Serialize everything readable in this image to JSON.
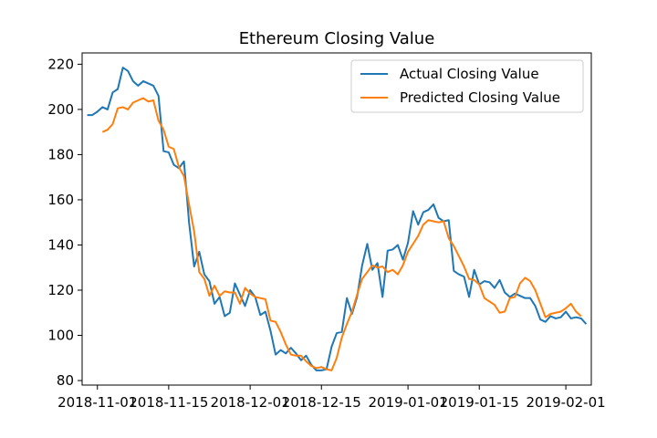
{
  "chart_data": {
    "type": "line",
    "title": "Ethereum Closing Value",
    "xlabel": "",
    "ylabel": "",
    "x_tick_labels": [
      "2018-11-01",
      "2018-11-15",
      "2018-12-01",
      "2018-12-15",
      "2019-01-01",
      "2019-01-15",
      "2019-02-01"
    ],
    "x_tick_dates": [
      "2018-11-01",
      "2018-11-15",
      "2018-12-01",
      "2018-12-15",
      "2019-01-01",
      "2019-01-15",
      "2019-02-01"
    ],
    "y_ticks": [
      80,
      100,
      120,
      140,
      160,
      180,
      200,
      220
    ],
    "xlim": [
      "2018-10-29",
      "2019-02-06"
    ],
    "ylim": [
      78,
      225
    ],
    "grid": false,
    "legend_position": "top-right",
    "series": [
      {
        "name": "Actual Closing Value",
        "color": "#1f77b4",
        "points": [
          [
            "2018-10-30",
            197.5
          ],
          [
            "2018-10-31",
            197.5
          ],
          [
            "2018-11-01",
            199
          ],
          [
            "2018-11-02",
            201
          ],
          [
            "2018-11-03",
            200
          ],
          [
            "2018-11-04",
            207.5
          ],
          [
            "2018-11-05",
            209
          ],
          [
            "2018-11-06",
            218.5
          ],
          [
            "2018-11-07",
            217
          ],
          [
            "2018-11-08",
            212.5
          ],
          [
            "2018-11-09",
            210.5
          ],
          [
            "2018-11-10",
            212.5
          ],
          [
            "2018-11-11",
            211.5
          ],
          [
            "2018-11-12",
            210.5
          ],
          [
            "2018-11-13",
            206
          ],
          [
            "2018-11-14",
            181.5
          ],
          [
            "2018-11-15",
            181
          ],
          [
            "2018-11-16",
            175.5
          ],
          [
            "2018-11-17",
            174
          ],
          [
            "2018-11-18",
            177
          ],
          [
            "2018-11-19",
            150
          ],
          [
            "2018-11-20",
            130.5
          ],
          [
            "2018-11-21",
            137
          ],
          [
            "2018-11-22",
            127
          ],
          [
            "2018-11-23",
            124
          ],
          [
            "2018-11-24",
            114
          ],
          [
            "2018-11-25",
            117
          ],
          [
            "2018-11-26",
            108.5
          ],
          [
            "2018-11-27",
            110
          ],
          [
            "2018-11-28",
            123
          ],
          [
            "2018-11-29",
            118
          ],
          [
            "2018-11-30",
            113
          ],
          [
            "2018-12-01",
            120
          ],
          [
            "2018-12-02",
            117
          ],
          [
            "2018-12-03",
            109
          ],
          [
            "2018-12-04",
            110.5
          ],
          [
            "2018-12-05",
            102
          ],
          [
            "2018-12-06",
            91.5
          ],
          [
            "2018-12-07",
            93.5
          ],
          [
            "2018-12-08",
            92
          ],
          [
            "2018-12-09",
            94.5
          ],
          [
            "2018-12-10",
            92
          ],
          [
            "2018-12-11",
            89
          ],
          [
            "2018-12-12",
            91
          ],
          [
            "2018-12-13",
            87
          ],
          [
            "2018-12-14",
            84.5
          ],
          [
            "2018-12-15",
            84.5
          ],
          [
            "2018-12-16",
            85
          ],
          [
            "2018-12-17",
            95
          ],
          [
            "2018-12-18",
            101
          ],
          [
            "2018-12-19",
            101.5
          ],
          [
            "2018-12-20",
            116.5
          ],
          [
            "2018-12-21",
            109.5
          ],
          [
            "2018-12-22",
            117
          ],
          [
            "2018-12-23",
            131
          ],
          [
            "2018-12-24",
            140.5
          ],
          [
            "2018-12-25",
            129
          ],
          [
            "2018-12-26",
            132
          ],
          [
            "2018-12-27",
            117
          ],
          [
            "2018-12-28",
            137.5
          ],
          [
            "2018-12-29",
            138
          ],
          [
            "2018-12-30",
            140
          ],
          [
            "2018-12-31",
            133.5
          ],
          [
            "2019-01-01",
            141
          ],
          [
            "2019-01-02",
            155
          ],
          [
            "2019-01-03",
            149
          ],
          [
            "2019-01-04",
            154.5
          ],
          [
            "2019-01-05",
            155.5
          ],
          [
            "2019-01-06",
            158
          ],
          [
            "2019-01-07",
            152
          ],
          [
            "2019-01-08",
            150.5
          ],
          [
            "2019-01-09",
            151
          ],
          [
            "2019-01-10",
            128.5
          ],
          [
            "2019-01-11",
            127
          ],
          [
            "2019-01-12",
            126
          ],
          [
            "2019-01-13",
            117
          ],
          [
            "2019-01-14",
            129
          ],
          [
            "2019-01-15",
            122.5
          ],
          [
            "2019-01-16",
            124
          ],
          [
            "2019-01-17",
            123.5
          ],
          [
            "2019-01-18",
            121
          ],
          [
            "2019-01-19",
            124.5
          ],
          [
            "2019-01-20",
            119
          ],
          [
            "2019-01-21",
            117
          ],
          [
            "2019-01-22",
            118.5
          ],
          [
            "2019-01-23",
            117.5
          ],
          [
            "2019-01-24",
            116.5
          ],
          [
            "2019-01-25",
            116.5
          ],
          [
            "2019-01-26",
            113
          ],
          [
            "2019-01-27",
            107
          ],
          [
            "2019-01-28",
            106
          ],
          [
            "2019-01-29",
            108.5
          ],
          [
            "2019-01-30",
            107.5
          ],
          [
            "2019-01-31",
            108
          ],
          [
            "2019-02-01",
            110.5
          ],
          [
            "2019-02-02",
            107.5
          ],
          [
            "2019-02-03",
            108
          ],
          [
            "2019-02-04",
            107.5
          ],
          [
            "2019-02-05",
            105
          ]
        ]
      },
      {
        "name": "Predicted Closing Value",
        "color": "#ff7f0e",
        "points": [
          [
            "2018-11-02",
            190
          ],
          [
            "2018-11-03",
            191
          ],
          [
            "2018-11-04",
            193.5
          ],
          [
            "2018-11-05",
            200.5
          ],
          [
            "2018-11-06",
            201
          ],
          [
            "2018-11-07",
            200
          ],
          [
            "2018-11-08",
            203
          ],
          [
            "2018-11-09",
            204
          ],
          [
            "2018-11-10",
            205
          ],
          [
            "2018-11-11",
            203.5
          ],
          [
            "2018-11-12",
            204
          ],
          [
            "2018-11-13",
            195
          ],
          [
            "2018-11-14",
            191
          ],
          [
            "2018-11-15",
            183.5
          ],
          [
            "2018-11-16",
            182.5
          ],
          [
            "2018-11-17",
            174.5
          ],
          [
            "2018-11-18",
            170.5
          ],
          [
            "2018-11-19",
            158
          ],
          [
            "2018-11-20",
            146
          ],
          [
            "2018-11-21",
            128
          ],
          [
            "2018-11-22",
            125
          ],
          [
            "2018-11-23",
            117.5
          ],
          [
            "2018-11-24",
            122
          ],
          [
            "2018-11-25",
            117.5
          ],
          [
            "2018-11-26",
            119.5
          ],
          [
            "2018-11-27",
            119
          ],
          [
            "2018-11-28",
            119
          ],
          [
            "2018-11-29",
            114
          ],
          [
            "2018-11-30",
            121
          ],
          [
            "2018-12-01",
            118.5
          ],
          [
            "2018-12-02",
            117
          ],
          [
            "2018-12-03",
            116.5
          ],
          [
            "2018-12-04",
            116
          ],
          [
            "2018-12-05",
            106.5
          ],
          [
            "2018-12-06",
            106
          ],
          [
            "2018-12-07",
            101.5
          ],
          [
            "2018-12-08",
            96
          ],
          [
            "2018-12-09",
            91.5
          ],
          [
            "2018-12-10",
            91
          ],
          [
            "2018-12-11",
            91
          ],
          [
            "2018-12-12",
            88.5
          ],
          [
            "2018-12-13",
            86.5
          ],
          [
            "2018-12-14",
            85.5
          ],
          [
            "2018-12-15",
            86
          ],
          [
            "2018-12-16",
            85
          ],
          [
            "2018-12-17",
            84.5
          ],
          [
            "2018-12-18",
            90
          ],
          [
            "2018-12-19",
            99
          ],
          [
            "2018-12-20",
            105
          ],
          [
            "2018-12-21",
            110.5
          ],
          [
            "2018-12-22",
            118
          ],
          [
            "2018-12-23",
            125
          ],
          [
            "2018-12-24",
            128
          ],
          [
            "2018-12-25",
            131
          ],
          [
            "2018-12-26",
            130
          ],
          [
            "2018-12-27",
            130.5
          ],
          [
            "2018-12-28",
            128
          ],
          [
            "2018-12-29",
            129
          ],
          [
            "2018-12-30",
            127
          ],
          [
            "2018-12-31",
            131
          ],
          [
            "2019-01-01",
            137
          ],
          [
            "2019-01-02",
            140.5
          ],
          [
            "2019-01-03",
            144
          ],
          [
            "2019-01-04",
            149
          ],
          [
            "2019-01-05",
            151
          ],
          [
            "2019-01-06",
            150.5
          ],
          [
            "2019-01-07",
            150
          ],
          [
            "2019-01-08",
            150.5
          ],
          [
            "2019-01-09",
            143
          ],
          [
            "2019-01-10",
            139.5
          ],
          [
            "2019-01-11",
            135
          ],
          [
            "2019-01-12",
            130.5
          ],
          [
            "2019-01-13",
            125
          ],
          [
            "2019-01-14",
            124.5
          ],
          [
            "2019-01-15",
            122.5
          ],
          [
            "2019-01-16",
            116.5
          ],
          [
            "2019-01-17",
            115
          ],
          [
            "2019-01-18",
            113.5
          ],
          [
            "2019-01-19",
            110
          ],
          [
            "2019-01-20",
            110.5
          ],
          [
            "2019-01-21",
            116.5
          ],
          [
            "2019-01-22",
            117
          ],
          [
            "2019-01-23",
            123
          ],
          [
            "2019-01-24",
            125.5
          ],
          [
            "2019-01-25",
            124
          ],
          [
            "2019-01-26",
            120
          ],
          [
            "2019-01-27",
            114
          ],
          [
            "2019-01-28",
            108
          ],
          [
            "2019-01-29",
            109.5
          ],
          [
            "2019-01-30",
            110
          ],
          [
            "2019-01-31",
            110.5
          ],
          [
            "2019-02-01",
            112
          ],
          [
            "2019-02-02",
            114
          ],
          [
            "2019-02-03",
            110.5
          ],
          [
            "2019-02-04",
            108.5
          ]
        ]
      }
    ]
  }
}
